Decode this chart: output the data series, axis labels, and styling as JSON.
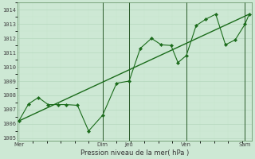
{
  "xlabel": "Pression niveau de la mer( hPa )",
  "bg_color": "#cde8d4",
  "line_color": "#1a6b1a",
  "grid_major_color": "#b0d4b8",
  "grid_minor_color": "#c8e4cc",
  "ylim": [
    1004.8,
    1014.5
  ],
  "ytick_values": [
    1005,
    1006,
    1007,
    1008,
    1009,
    1010,
    1011,
    1012,
    1013,
    1014
  ],
  "xlim": [
    -0.05,
    8.35
  ],
  "xtick_positions": [
    0,
    3.0,
    3.95,
    6.0,
    8.1
  ],
  "xtick_labels": [
    "Mer",
    "Dim",
    "Jeu",
    "Ven",
    "Sam"
  ],
  "vline_positions": [
    3.0,
    3.95,
    6.0,
    8.1
  ],
  "wavy_x": [
    0,
    0.35,
    0.7,
    1.05,
    1.4,
    1.7,
    2.1,
    2.5,
    3.0,
    3.5,
    3.95,
    4.35,
    4.75,
    5.1,
    5.45,
    5.7,
    6.0,
    6.35,
    6.7,
    7.05,
    7.4,
    7.75,
    8.1,
    8.25
  ],
  "wavy_y": [
    1006.2,
    1007.4,
    1007.85,
    1007.35,
    1007.35,
    1007.35,
    1007.3,
    1005.5,
    1006.6,
    1008.85,
    1009.0,
    1011.3,
    1012.0,
    1011.55,
    1011.5,
    1010.3,
    1010.8,
    1012.9,
    1013.35,
    1013.7,
    1011.55,
    1011.9,
    1013.0,
    1013.7
  ],
  "trend_x": [
    0,
    8.25
  ],
  "trend_y": [
    1006.2,
    1013.7
  ]
}
